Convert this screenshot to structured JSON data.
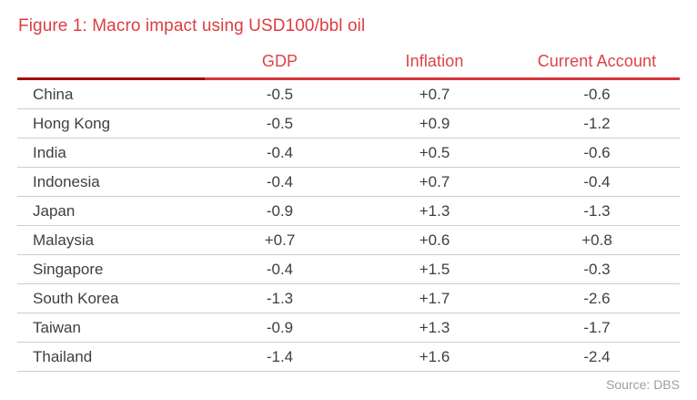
{
  "figure": {
    "title": "Figure 1: Macro impact using USD100/bbl oil",
    "source": "Source: DBS"
  },
  "table": {
    "columns": [
      "",
      "GDP",
      "Inflation",
      "Current Account"
    ],
    "rows": [
      {
        "country": "China",
        "gdp": "-0.5",
        "inflation": "+0.7",
        "current_account": "-0.6"
      },
      {
        "country": "Hong Kong",
        "gdp": "-0.5",
        "inflation": "+0.9",
        "current_account": "-1.2"
      },
      {
        "country": "India",
        "gdp": "-0.4",
        "inflation": "+0.5",
        "current_account": "-0.6"
      },
      {
        "country": "Indonesia",
        "gdp": "-0.4",
        "inflation": "+0.7",
        "current_account": "-0.4"
      },
      {
        "country": "Japan",
        "gdp": "-0.9",
        "inflation": "+1.3",
        "current_account": "-1.3"
      },
      {
        "country": "Malaysia",
        "gdp": "+0.7",
        "inflation": "+0.6",
        "current_account": "+0.8"
      },
      {
        "country": "Singapore",
        "gdp": "-0.4",
        "inflation": "+1.5",
        "current_account": "-0.3"
      },
      {
        "country": "South Korea",
        "gdp": "-1.3",
        "inflation": "+1.7",
        "current_account": "-2.6"
      },
      {
        "country": "Taiwan",
        "gdp": "-0.9",
        "inflation": "+1.3",
        "current_account": "-1.7"
      },
      {
        "country": "Thailand",
        "gdp": "-1.4",
        "inflation": "+1.6",
        "current_account": "-2.4"
      }
    ]
  },
  "colors": {
    "title_red": "#DC3D40",
    "header_red": "#DB4347",
    "rule_dark_red": "#A30D12",
    "rule_bright_red": "#D5343A",
    "row_line_gray": "#C9CDD1",
    "body_text": "#3E3F41",
    "source_gray": "#99A0A5",
    "background": "#FFFFFF"
  }
}
